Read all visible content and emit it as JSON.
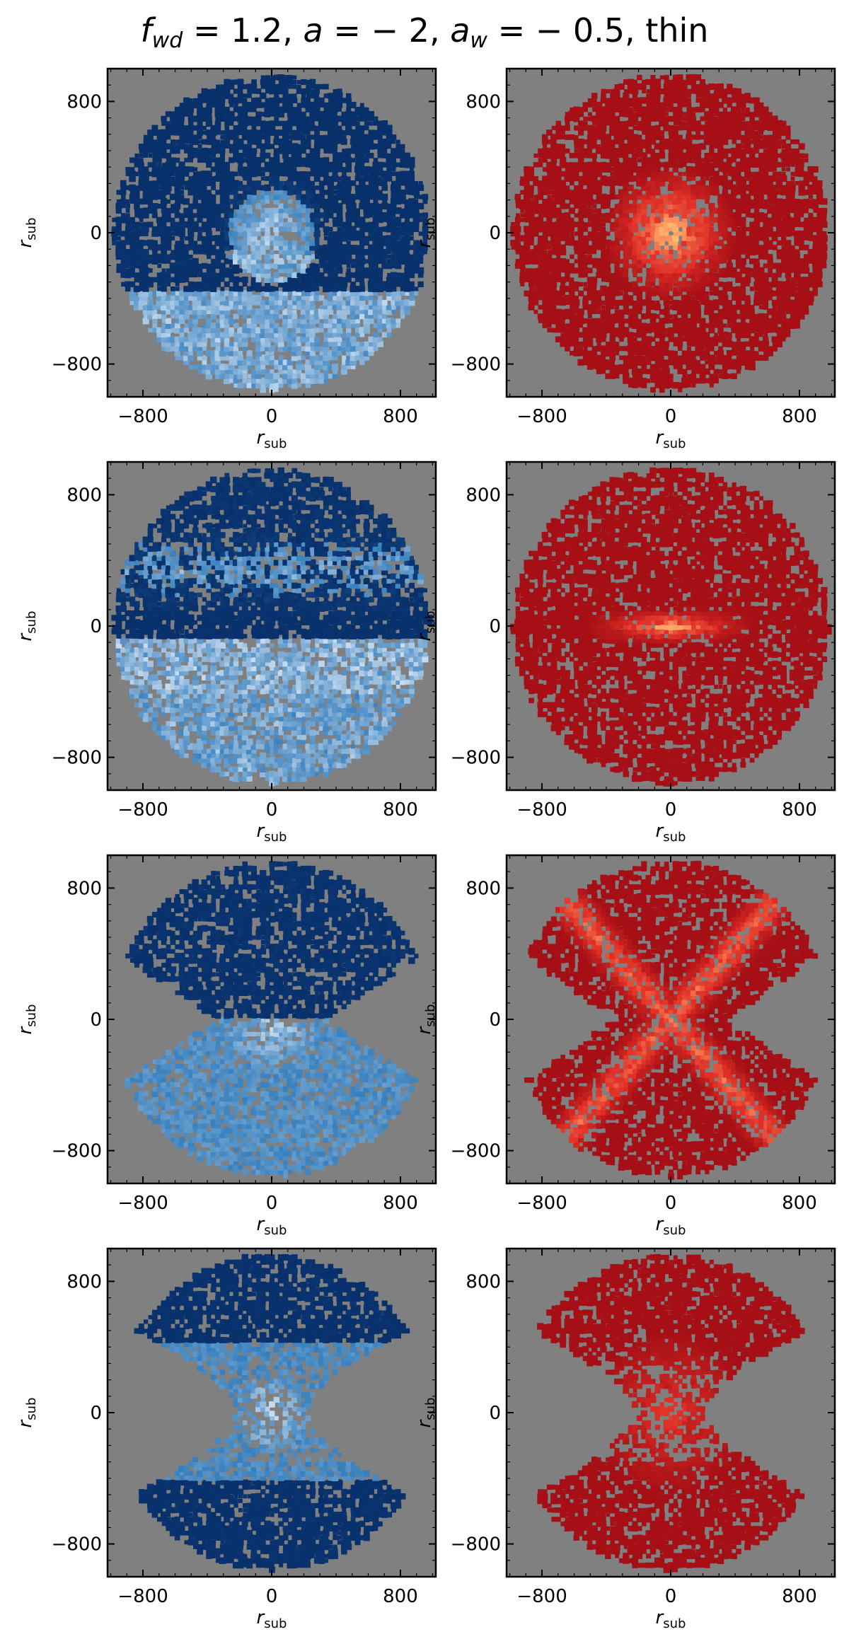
{
  "title": {
    "f_sym": "f",
    "f_sub": "wd",
    "f_val": " = 1.2, ",
    "a_sym": "a",
    "a_val": " = − 2, ",
    "aw_sym": "a",
    "aw_sub": "w",
    "aw_val": " = − 0.5, thin"
  },
  "colors": {
    "background": "#808080",
    "blue_dark": "#08306b",
    "blue_mid": "#2171b5",
    "blue_light": "#c6dbef",
    "red_dark": "#a50f15",
    "red_mid": "#de2d26",
    "red_bright": "#fc8d59",
    "yellow_hot": "#ffef8a"
  },
  "chart_data": [
    {
      "type": "heatmap",
      "row": 1,
      "colormap": "Blues",
      "xlabel": "r",
      "xlabel_sub": "sub",
      "ylabel": "r",
      "ylabel_sub": "sub",
      "xlim": [
        -1020,
        1020
      ],
      "ylim": [
        -1000,
        1000
      ],
      "xticks": [
        "−800",
        "0",
        "800"
      ],
      "yticks": [
        "800",
        "0",
        "−800"
      ],
      "pattern": "dense ellipsoid, dark upper half, bright core near center"
    },
    {
      "type": "heatmap",
      "row": 1,
      "colormap": "YlOrRd",
      "xlabel": "r",
      "xlabel_sub": "sub",
      "ylabel": "r",
      "ylabel_sub": "sub",
      "xlim": [
        -1020,
        1020
      ],
      "ylim": [
        -1000,
        1000
      ],
      "xticks": [
        "−800",
        "0",
        "800"
      ],
      "yticks": [
        "800",
        "0",
        "−800"
      ],
      "pattern": "diffuse ellipsoid, hot core"
    },
    {
      "type": "heatmap",
      "row": 2,
      "colormap": "Blues",
      "xlabel": "r",
      "xlabel_sub": "sub",
      "ylabel": "r",
      "ylabel_sub": "sub",
      "xlim": [
        -1020,
        1020
      ],
      "ylim": [
        -1000,
        1000
      ],
      "xticks": [
        "−800",
        "0",
        "800"
      ],
      "yticks": [
        "800",
        "0",
        "−800"
      ],
      "pattern": "dark band at midplane, bright caps above and below"
    },
    {
      "type": "heatmap",
      "row": 2,
      "colormap": "YlOrRd",
      "xlabel": "r",
      "xlabel_sub": "sub",
      "ylabel": "r",
      "ylabel_sub": "sub",
      "xlim": [
        -1020,
        1020
      ],
      "ylim": [
        -1000,
        1000
      ],
      "xticks": [
        "−800",
        "0",
        "800"
      ],
      "yticks": [
        "800",
        "0",
        "−800"
      ],
      "pattern": "bright horizontal band at midplane"
    },
    {
      "type": "heatmap",
      "row": 3,
      "colormap": "Blues",
      "xlabel": "r",
      "xlabel_sub": "sub",
      "ylabel": "r",
      "ylabel_sub": "sub",
      "xlim": [
        -1020,
        1020
      ],
      "ylim": [
        -1000,
        1000
      ],
      "xticks": [
        "−800",
        "0",
        "800"
      ],
      "yticks": [
        "800",
        "0",
        "−800"
      ],
      "pattern": "dark upper lobe, bright lower lobe, pinched waist"
    },
    {
      "type": "heatmap",
      "row": 3,
      "colormap": "YlOrRd",
      "xlabel": "r",
      "xlabel_sub": "sub",
      "ylabel": "r",
      "ylabel_sub": "sub",
      "xlim": [
        -1020,
        1020
      ],
      "ylim": [
        -1000,
        1000
      ],
      "xticks": [
        "−800",
        "0",
        "800"
      ],
      "yticks": [
        "800",
        "0",
        "−800"
      ],
      "pattern": "two lobes with hot X-shaped center"
    },
    {
      "type": "heatmap",
      "row": 4,
      "colormap": "Blues",
      "xlabel": "r",
      "xlabel_sub": "sub",
      "ylabel": "r",
      "ylabel_sub": "sub",
      "xlim": [
        -1020,
        1020
      ],
      "ylim": [
        -1000,
        1000
      ],
      "xticks": [
        "−800",
        "0",
        "800"
      ],
      "yticks": [
        "800",
        "0",
        "−800"
      ],
      "pattern": "hourglass, bright center, dark lobes"
    },
    {
      "type": "heatmap",
      "row": 4,
      "colormap": "YlOrRd",
      "xlabel": "r",
      "xlabel_sub": "sub",
      "ylabel": "r",
      "ylabel_sub": "sub",
      "xlim": [
        -1020,
        1020
      ],
      "ylim": [
        -1000,
        1000
      ],
      "xticks": [
        "−800",
        "0",
        "800"
      ],
      "yticks": [
        "800",
        "0",
        "−800"
      ],
      "pattern": "hourglass, sparse center, dense lobes"
    }
  ]
}
